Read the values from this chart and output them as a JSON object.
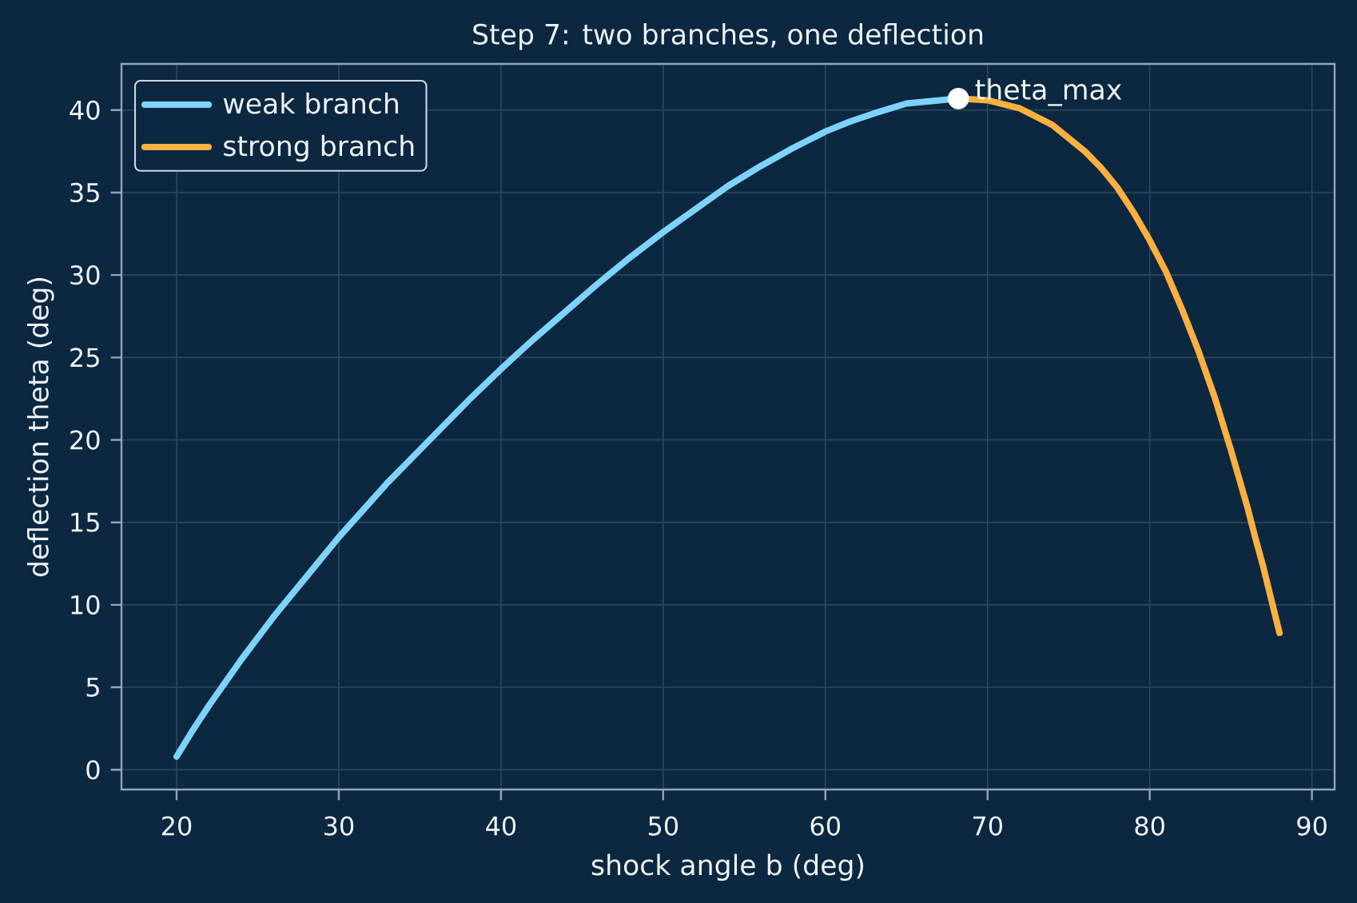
{
  "chart_data": {
    "type": "line",
    "title": "Step 7: two branches, one deflection",
    "xlabel": "shock angle b (deg)",
    "ylabel": "deflection theta (deg)",
    "xlim": [
      16.6,
      91.4
    ],
    "ylim": [
      -1.2,
      42.8
    ],
    "xticks": [
      20,
      30,
      40,
      50,
      60,
      70,
      80,
      90
    ],
    "yticks": [
      0,
      5,
      10,
      15,
      20,
      25,
      30,
      35,
      40
    ],
    "grid": true,
    "legend": "top left",
    "series": [
      {
        "name": "weak branch",
        "color": "#7dd3fc",
        "x": [
          20,
          21,
          22,
          23,
          24,
          25,
          26,
          27,
          28,
          30,
          33,
          36,
          38,
          40,
          42,
          44,
          46,
          48,
          50,
          52,
          54,
          56,
          58,
          60,
          61.5,
          63,
          65,
          68.2
        ],
        "values": [
          0.8,
          2.4,
          3.9,
          5.3,
          6.7,
          8.0,
          9.3,
          10.5,
          11.7,
          14.1,
          17.4,
          20.4,
          22.4,
          24.3,
          26.1,
          27.8,
          29.5,
          31.1,
          32.6,
          34.0,
          35.4,
          36.6,
          37.7,
          38.7,
          39.3,
          39.8,
          40.4,
          40.7
        ]
      },
      {
        "name": "strong branch",
        "color": "#fbb040",
        "x": [
          68.2,
          70,
          72,
          74,
          76,
          77,
          78,
          79,
          80,
          81,
          82,
          83,
          84,
          85,
          85.5,
          86,
          86.5,
          87,
          87.5,
          88
        ],
        "values": [
          40.7,
          40.6,
          40.1,
          39.1,
          37.5,
          36.5,
          35.3,
          33.8,
          32.1,
          30.2,
          27.9,
          25.4,
          22.6,
          19.4,
          17.7,
          16.0,
          14.1,
          12.3,
          10.3,
          8.3
        ]
      },
      {
        "type": "scatter",
        "color": "#ffffff",
        "marker": "circle",
        "x": [
          68.2
        ],
        "values": [
          40.7
        ]
      }
    ],
    "annotations": [
      {
        "text": "theta_max",
        "x": 68.2,
        "y": 40.7
      }
    ]
  }
}
